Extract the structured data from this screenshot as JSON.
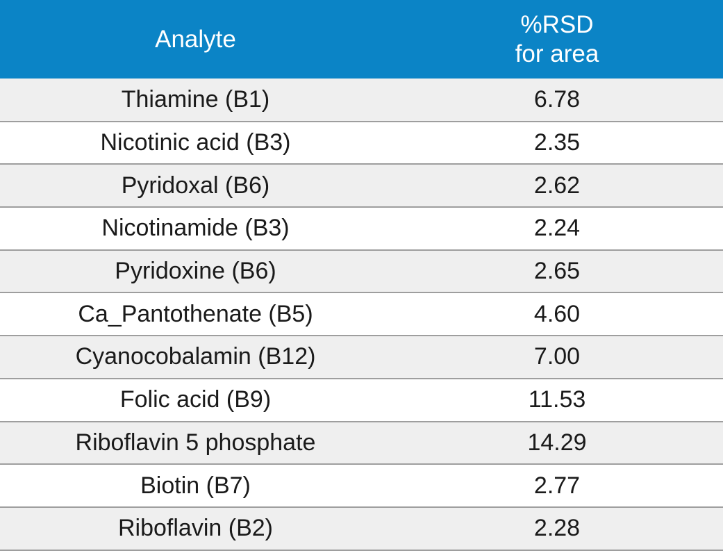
{
  "table": {
    "headers": {
      "analyte": "Analyte",
      "rsd_line1": "%RSD",
      "rsd_line2": "for area"
    },
    "rows": [
      {
        "analyte": "Thiamine (B1)",
        "rsd": "6.78"
      },
      {
        "analyte": "Nicotinic acid (B3)",
        "rsd": "2.35"
      },
      {
        "analyte": "Pyridoxal (B6)",
        "rsd": "2.62"
      },
      {
        "analyte": "Nicotinamide (B3)",
        "rsd": "2.24"
      },
      {
        "analyte": "Pyridoxine (B6)",
        "rsd": "2.65"
      },
      {
        "analyte": "Ca_Pantothenate (B5)",
        "rsd": "4.60"
      },
      {
        "analyte": "Cyanocobalamin (B12)",
        "rsd": "7.00"
      },
      {
        "analyte": "Folic acid (B9)",
        "rsd": "11.53"
      },
      {
        "analyte": "Riboflavin 5 phosphate",
        "rsd": "14.29"
      },
      {
        "analyte": "Biotin (B7)",
        "rsd": "2.77"
      },
      {
        "analyte": "Riboflavin (B2)",
        "rsd": "2.28"
      }
    ]
  },
  "colors": {
    "header_bg": "#0b84c6",
    "header_text": "#ffffff",
    "row_alt": "#efefef",
    "divider": "#9e9e9e"
  }
}
